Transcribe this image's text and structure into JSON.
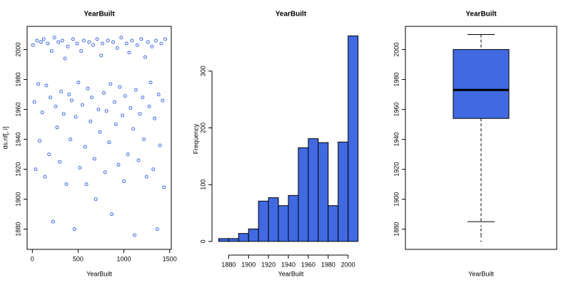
{
  "chart_data": [
    {
      "type": "scatter",
      "title": "YearBuilt",
      "xlabel": "YearBuilt",
      "ylabel": "ds.nf[, i]",
      "color": "#4169e1",
      "x": [
        7,
        22,
        36,
        51,
        65,
        80,
        95,
        109,
        124,
        138,
        153,
        168,
        182,
        197,
        211,
        226,
        241,
        255,
        270,
        284,
        299,
        314,
        328,
        343,
        357,
        372,
        387,
        401,
        416,
        430,
        445,
        460,
        474,
        489,
        503,
        518,
        533,
        547,
        562,
        576,
        591,
        606,
        620,
        635,
        649,
        664,
        679,
        693,
        708,
        722,
        737,
        752,
        766,
        781,
        795,
        810,
        825,
        839,
        854,
        868,
        883,
        898,
        912,
        927,
        941,
        956,
        971,
        985,
        1000,
        1014,
        1029,
        1044,
        1058,
        1073,
        1087,
        1102,
        1117,
        1131,
        1146,
        1160,
        1175,
        1190,
        1204,
        1219,
        1233,
        1248,
        1263,
        1277,
        1292,
        1306,
        1321,
        1336,
        1350,
        1365,
        1379,
        1394,
        1409,
        1423,
        1438,
        1452
      ],
      "values": [
        2003,
        1965,
        1920,
        2006,
        1977,
        1939,
        2005,
        1958,
        2007,
        1915,
        1976,
        2004,
        1930,
        1968,
        1999,
        1885,
        2008,
        1962,
        1948,
        2005,
        1925,
        1972,
        2006,
        1957,
        1994,
        1910,
        2002,
        1970,
        1940,
        1966,
        2007,
        1880,
        1955,
        2004,
        1978,
        1921,
        1999,
        1963,
        2006,
        1935,
        1910,
        1974,
        2005,
        1952,
        1968,
        2003,
        1927,
        1900,
        2007,
        1960,
        1945,
        1996,
        2004,
        1971,
        1918,
        1959,
        2006,
        1938,
        1977,
        1890,
        2005,
        1965,
        1950,
        2001,
        1923,
        1975,
        2008,
        1956,
        1912,
        1969,
        2004,
        1930,
        1998,
        1961,
        2006,
        1947,
        1876,
        1973,
        2003,
        1926,
        1957,
        2007,
        1968,
        1940,
        1995,
        1915,
        2005,
        1962,
        1978,
        2002,
        1920,
        1954,
        2006,
        1880,
        1970,
        1936,
        2004,
        1966,
        1908,
        2007
      ],
      "xlim": [
        -57,
        1518
      ],
      "xticks": [
        0,
        500,
        1000,
        1500
      ],
      "ylim": [
        1866.5,
        2015.5
      ],
      "yticks": [
        1880,
        1900,
        1920,
        1940,
        1960,
        1980,
        2000
      ]
    },
    {
      "type": "histogram",
      "title": "YearBuilt",
      "xlabel": "YearBuilt",
      "ylabel": "Frequency",
      "color": "#4169e1",
      "bins": [
        1870,
        1880,
        1890,
        1900,
        1910,
        1920,
        1930,
        1940,
        1950,
        1960,
        1970,
        1980,
        1990,
        2000,
        2010
      ],
      "values": [
        5,
        5,
        14,
        22,
        71,
        77,
        63,
        81,
        165,
        181,
        174,
        63,
        175,
        362
      ],
      "xlim": [
        1869,
        2016
      ],
      "xticks": [
        1880,
        1900,
        1920,
        1940,
        1960,
        1980,
        2000
      ],
      "ylim": [
        -14,
        375
      ],
      "yticks": [
        0,
        100,
        200,
        300
      ]
    },
    {
      "type": "box",
      "title": "YearBuilt",
      "xlabel": "YearBuilt",
      "color": "#4169e1",
      "whisker_low": 1885,
      "q1": 1954,
      "median": 1973,
      "q3": 2000,
      "whisker_high": 2010,
      "outliers": [
        1872,
        1875,
        1876,
        1877,
        1879,
        1880,
        1880,
        1882
      ],
      "ylim": [
        1866.5,
        2015.5
      ],
      "yticks": [
        1880,
        1900,
        1920,
        1940,
        1960,
        1980,
        2000
      ]
    }
  ]
}
